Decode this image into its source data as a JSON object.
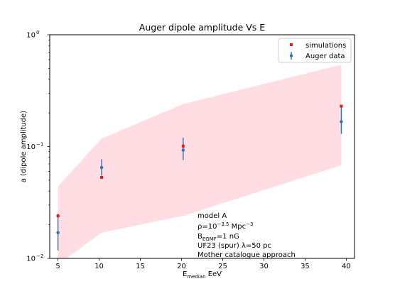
{
  "chart_data": {
    "type": "scatter",
    "title": "Auger dipole amplitude Vs E",
    "xlabel": {
      "main": "E",
      "sub": "median",
      "rest": " EeV"
    },
    "ylabel": "a (dipole amplitude)",
    "xlim": [
      4,
      41
    ],
    "ylim": [
      0.01,
      1.0
    ],
    "y_scale": "log",
    "x_ticks": [
      5,
      10,
      15,
      20,
      25,
      30,
      35,
      40
    ],
    "y_ticks": [
      {
        "value": 0.01,
        "base": "10",
        "exp": "−2"
      },
      {
        "value": 0.1,
        "base": "10",
        "exp": "−1"
      },
      {
        "value": 1.0,
        "base": "10",
        "exp": "0"
      }
    ],
    "grid": false,
    "legend_position": "top-right",
    "band": {
      "color": "#ffdde3",
      "x": [
        5,
        10.3,
        20.2,
        39.4
      ],
      "lower": [
        0.0088,
        0.017,
        0.024,
        0.068
      ],
      "upper": [
        0.044,
        0.118,
        0.24,
        0.54
      ]
    },
    "series": [
      {
        "name": "simulations",
        "marker": "square",
        "color": "#e6191b",
        "x": [
          5,
          10.3,
          20.2,
          39.4
        ],
        "y": [
          0.024,
          0.053,
          0.101,
          0.23
        ]
      },
      {
        "name": "Auger data",
        "marker": "dot-errorbar",
        "color": "#2a72b5",
        "x": [
          5,
          10.3,
          20.2,
          39.4
        ],
        "y": [
          0.017,
          0.065,
          0.093,
          0.167
        ],
        "y_low": [
          0.0118,
          0.055,
          0.076,
          0.13
        ],
        "y_high": [
          0.025,
          0.077,
          0.12,
          0.225
        ]
      }
    ],
    "annotation": {
      "l1": "model A",
      "l2": {
        "pre": "ρ=10",
        "exp": "−3.5",
        "post": " Mpc",
        "exp2": "−3"
      },
      "l3": {
        "pre": "B",
        "sub": "EGMF",
        "post": "=1 nG"
      },
      "l4": "UF23 (spur) λ=50 pc",
      "l5": "Mother catalogue approach"
    }
  }
}
